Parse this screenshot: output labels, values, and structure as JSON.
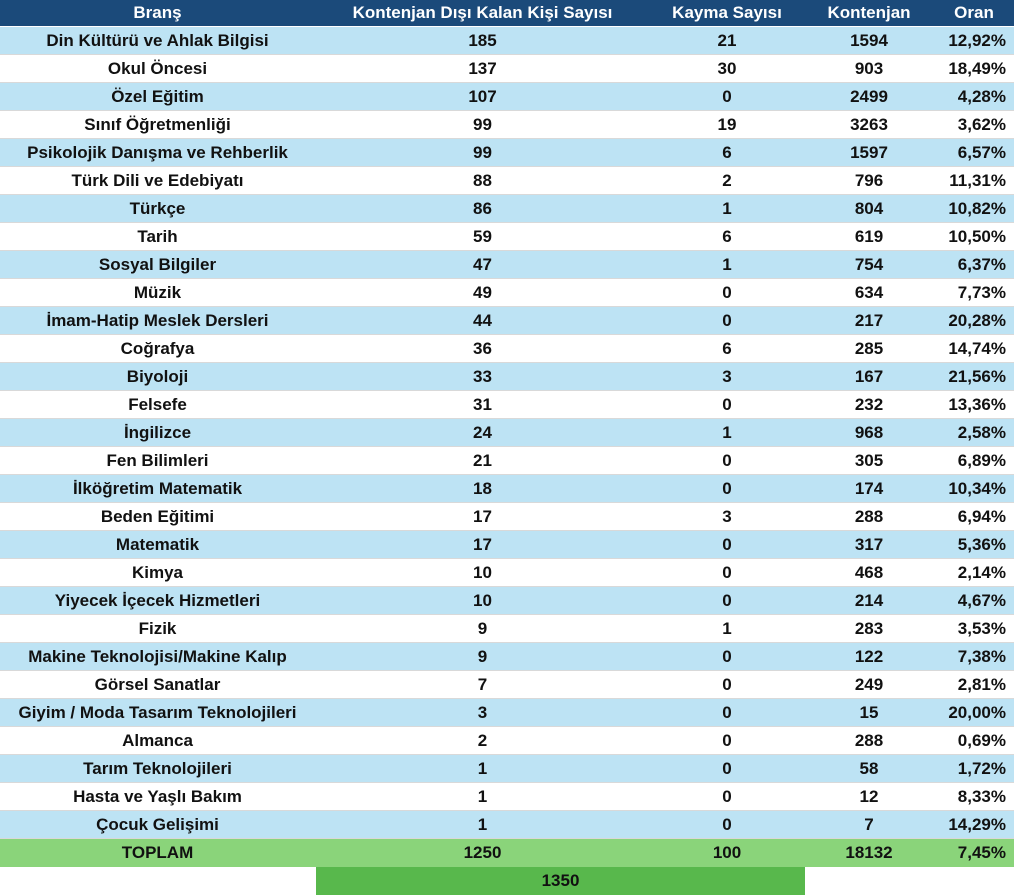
{
  "header": {
    "brans": "Branş",
    "kontenjan_disi": "Kontenjan Dışı Kalan Kişi Sayısı",
    "kayma": "Kayma Sayısı",
    "kontenjan": "Kontenjan",
    "oran": "Oran"
  },
  "rows": [
    {
      "brans": "Din Kültürü ve Ahlak Bilgisi",
      "disi": "185",
      "kayma": "21",
      "kontenjan": "1594",
      "oran": "12,92%"
    },
    {
      "brans": "Okul Öncesi",
      "disi": "137",
      "kayma": "30",
      "kontenjan": "903",
      "oran": "18,49%"
    },
    {
      "brans": "Özel Eğitim",
      "disi": "107",
      "kayma": "0",
      "kontenjan": "2499",
      "oran": "4,28%"
    },
    {
      "brans": "Sınıf Öğretmenliği",
      "disi": "99",
      "kayma": "19",
      "kontenjan": "3263",
      "oran": "3,62%"
    },
    {
      "brans": "Psikolojik Danışma ve Rehberlik",
      "disi": "99",
      "kayma": "6",
      "kontenjan": "1597",
      "oran": "6,57%"
    },
    {
      "brans": "Türk Dili ve Edebiyatı",
      "disi": "88",
      "kayma": "2",
      "kontenjan": "796",
      "oran": "11,31%"
    },
    {
      "brans": "Türkçe",
      "disi": "86",
      "kayma": "1",
      "kontenjan": "804",
      "oran": "10,82%"
    },
    {
      "brans": "Tarih",
      "disi": "59",
      "kayma": "6",
      "kontenjan": "619",
      "oran": "10,50%"
    },
    {
      "brans": "Sosyal Bilgiler",
      "disi": "47",
      "kayma": "1",
      "kontenjan": "754",
      "oran": "6,37%"
    },
    {
      "brans": "Müzik",
      "disi": "49",
      "kayma": "0",
      "kontenjan": "634",
      "oran": "7,73%"
    },
    {
      "brans": "İmam-Hatip Meslek Dersleri",
      "disi": "44",
      "kayma": "0",
      "kontenjan": "217",
      "oran": "20,28%"
    },
    {
      "brans": "Coğrafya",
      "disi": "36",
      "kayma": "6",
      "kontenjan": "285",
      "oran": "14,74%"
    },
    {
      "brans": "Biyoloji",
      "disi": "33",
      "kayma": "3",
      "kontenjan": "167",
      "oran": "21,56%"
    },
    {
      "brans": "Felsefe",
      "disi": "31",
      "kayma": "0",
      "kontenjan": "232",
      "oran": "13,36%"
    },
    {
      "brans": "İngilizce",
      "disi": "24",
      "kayma": "1",
      "kontenjan": "968",
      "oran": "2,58%"
    },
    {
      "brans": "Fen Bilimleri",
      "disi": "21",
      "kayma": "0",
      "kontenjan": "305",
      "oran": "6,89%"
    },
    {
      "brans": "İlköğretim Matematik",
      "disi": "18",
      "kayma": "0",
      "kontenjan": "174",
      "oran": "10,34%"
    },
    {
      "brans": "Beden Eğitimi",
      "disi": "17",
      "kayma": "3",
      "kontenjan": "288",
      "oran": "6,94%"
    },
    {
      "brans": "Matematik",
      "disi": "17",
      "kayma": "0",
      "kontenjan": "317",
      "oran": "5,36%"
    },
    {
      "brans": "Kimya",
      "disi": "10",
      "kayma": "0",
      "kontenjan": "468",
      "oran": "2,14%"
    },
    {
      "brans": "Yiyecek İçecek Hizmetleri",
      "disi": "10",
      "kayma": "0",
      "kontenjan": "214",
      "oran": "4,67%"
    },
    {
      "brans": "Fizik",
      "disi": "9",
      "kayma": "1",
      "kontenjan": "283",
      "oran": "3,53%"
    },
    {
      "brans": "Makine Teknolojisi/Makine Kalıp",
      "disi": "9",
      "kayma": "0",
      "kontenjan": "122",
      "oran": "7,38%"
    },
    {
      "brans": "Görsel Sanatlar",
      "disi": "7",
      "kayma": "0",
      "kontenjan": "249",
      "oran": "2,81%"
    },
    {
      "brans": "Giyim / Moda Tasarım Teknolojileri",
      "disi": "3",
      "kayma": "0",
      "kontenjan": "15",
      "oran": "20,00%"
    },
    {
      "brans": "Almanca",
      "disi": "2",
      "kayma": "0",
      "kontenjan": "288",
      "oran": "0,69%"
    },
    {
      "brans": "Tarım Teknolojileri",
      "disi": "1",
      "kayma": "0",
      "kontenjan": "58",
      "oran": "1,72%"
    },
    {
      "brans": "Hasta ve Yaşlı Bakım",
      "disi": "1",
      "kayma": "0",
      "kontenjan": "12",
      "oran": "8,33%"
    },
    {
      "brans": "Çocuk Gelişimi",
      "disi": "1",
      "kayma": "0",
      "kontenjan": "7",
      "oran": "14,29%"
    }
  ],
  "total": {
    "label": "TOPLAM",
    "disi": "1250",
    "kayma": "100",
    "kontenjan": "18132",
    "oran": "7,45%"
  },
  "grand_total": "1350",
  "colors": {
    "header": "#1b4a7a",
    "row_alt": "#bde3f4",
    "total": "#8ad47a",
    "grand_total": "#58b84c"
  }
}
